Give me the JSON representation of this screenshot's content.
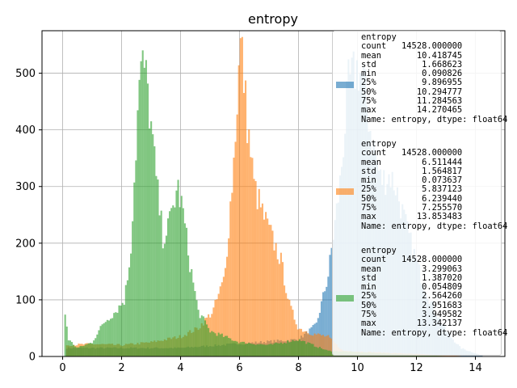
{
  "chart_data": {
    "type": "bar",
    "title": "entropy",
    "xlabel": "",
    "ylabel": "",
    "xlim": [
      -0.7,
      15.0
    ],
    "ylim": [
      0,
      575
    ],
    "xticks": [
      0,
      2,
      4,
      6,
      8,
      10,
      12,
      14
    ],
    "yticks": [
      0,
      100,
      200,
      300,
      400,
      500
    ],
    "grid": true,
    "legend_position": "right",
    "series": [
      {
        "name": "entropy",
        "color": "#1f77b4",
        "points": [
          [
            0.1,
            15
          ],
          [
            4.0,
            15
          ],
          [
            8.0,
            30
          ],
          [
            8.6,
            55
          ],
          [
            9.0,
            140
          ],
          [
            9.4,
            300
          ],
          [
            9.7,
            480
          ],
          [
            10.0,
            510
          ],
          [
            10.2,
            490
          ],
          [
            10.5,
            380
          ],
          [
            10.8,
            310
          ],
          [
            11.1,
            320
          ],
          [
            11.3,
            300
          ],
          [
            11.7,
            220
          ],
          [
            12.1,
            150
          ],
          [
            12.5,
            95
          ],
          [
            13.0,
            45
          ],
          [
            13.5,
            15
          ],
          [
            14.3,
            0
          ]
        ],
        "stats": {
          "count": "14528.000000",
          "mean": "10.418745",
          "std": "1.668623",
          "min": "0.090826",
          "p25": "9.896955",
          "p50": "10.294777",
          "p75": "11.284563",
          "max": "14.270465"
        }
      },
      {
        "name": "entropy",
        "color": "#ff7f0e",
        "points": [
          [
            0.1,
            20
          ],
          [
            1.0,
            22
          ],
          [
            2.0,
            20
          ],
          [
            3.0,
            25
          ],
          [
            4.0,
            35
          ],
          [
            4.6,
            50
          ],
          [
            5.1,
            80
          ],
          [
            5.5,
            140
          ],
          [
            5.8,
            340
          ],
          [
            5.95,
            480
          ],
          [
            6.05,
            560
          ],
          [
            6.25,
            420
          ],
          [
            6.5,
            300
          ],
          [
            6.8,
            250
          ],
          [
            7.1,
            210
          ],
          [
            7.4,
            170
          ],
          [
            7.7,
            90
          ],
          [
            8.0,
            50
          ],
          [
            8.5,
            40
          ],
          [
            9.0,
            35
          ],
          [
            9.5,
            10
          ],
          [
            13.9,
            0
          ]
        ],
        "stats": {
          "count": "14528.000000",
          "mean": "6.511444",
          "std": "1.564817",
          "min": "0.073637",
          "p25": "5.837123",
          "p50": "6.239440",
          "p75": "7.255570",
          "max": "13.853483"
        }
      },
      {
        "name": "entropy",
        "color": "#2ca02c",
        "points": [
          [
            0.05,
            90
          ],
          [
            0.2,
            30
          ],
          [
            0.5,
            15
          ],
          [
            1.0,
            25
          ],
          [
            1.4,
            60
          ],
          [
            1.8,
            80
          ],
          [
            2.1,
            100
          ],
          [
            2.3,
            180
          ],
          [
            2.45,
            330
          ],
          [
            2.6,
            480
          ],
          [
            2.75,
            520
          ],
          [
            2.9,
            460
          ],
          [
            3.05,
            380
          ],
          [
            3.2,
            300
          ],
          [
            3.4,
            210
          ],
          [
            3.6,
            230
          ],
          [
            3.9,
            300
          ],
          [
            4.1,
            250
          ],
          [
            4.3,
            170
          ],
          [
            4.6,
            80
          ],
          [
            5.0,
            45
          ],
          [
            6.0,
            25
          ],
          [
            7.0,
            20
          ],
          [
            8.0,
            30
          ],
          [
            9.0,
            10
          ],
          [
            13.3,
            0
          ]
        ],
        "stats": {
          "count": "14528.000000",
          "mean": "3.299063",
          "std": "1.387020",
          "min": "0.054809",
          "p25": "2.564260",
          "p50": "2.951683",
          "p75": "3.949582",
          "max": "13.342137"
        }
      }
    ],
    "legend_footer": "Name: entropy, dtype: float64"
  },
  "labels": {
    "count": "count",
    "mean": "mean",
    "std": "std",
    "min": "min",
    "p25": "25%",
    "p50": "50%",
    "p75": "75%",
    "max": "max"
  }
}
